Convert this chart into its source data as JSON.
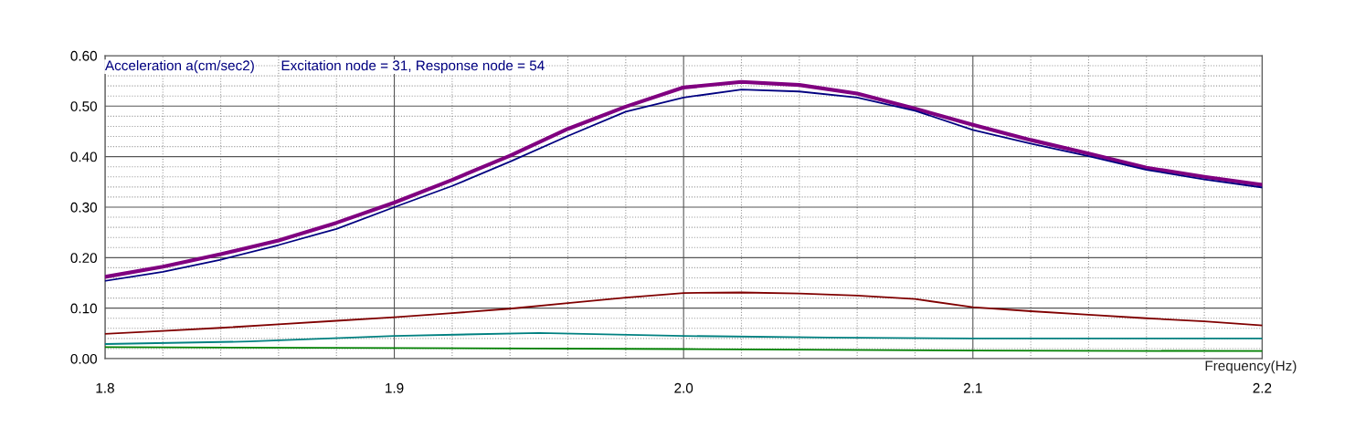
{
  "chart_data": {
    "type": "line",
    "title": "Excitation node = 31, Response node = 54",
    "ylabel": "Acceleration a(cm/sec2)",
    "xlabel": "Frequency(Hz)",
    "x": [
      1.8,
      1.82,
      1.84,
      1.86,
      1.88,
      1.9,
      1.92,
      1.94,
      1.96,
      1.98,
      2.0,
      2.02,
      2.04,
      2.06,
      2.08,
      2.1,
      2.12,
      2.14,
      2.16,
      2.18,
      2.2
    ],
    "series": [
      {
        "color": "#800080",
        "values": [
          0.162,
          0.182,
          0.207,
          0.234,
          0.269,
          0.309,
          0.354,
          0.402,
          0.455,
          0.499,
          0.537,
          0.548,
          0.542,
          0.525,
          0.495,
          0.463,
          0.433,
          0.406,
          0.378,
          0.36,
          0.344
        ]
      },
      {
        "color": "#000080",
        "values": [
          0.154,
          0.172,
          0.196,
          0.225,
          0.257,
          0.3,
          0.342,
          0.39,
          0.441,
          0.489,
          0.517,
          0.533,
          0.529,
          0.517,
          0.491,
          0.453,
          0.426,
          0.401,
          0.374,
          0.355,
          0.339
        ]
      },
      {
        "color": "#800000",
        "values": [
          0.049,
          0.055,
          0.061,
          0.068,
          0.075,
          0.082,
          0.09,
          0.099,
          0.11,
          0.121,
          0.13,
          0.131,
          0.129,
          0.125,
          0.118,
          0.102,
          0.094,
          0.087,
          0.08,
          0.074,
          0.066
        ]
      },
      {
        "color": "#008080",
        "x": [
          1.8,
          1.85,
          1.9,
          1.95,
          2.0,
          2.05,
          2.1,
          2.15,
          2.2
        ],
        "values": [
          0.029,
          0.034,
          0.045,
          0.051,
          0.045,
          0.042,
          0.04,
          0.04,
          0.04
        ]
      },
      {
        "color": "#008000",
        "x": [
          1.8,
          1.9,
          2.0,
          2.1,
          2.2
        ],
        "values": [
          0.023,
          0.021,
          0.019,
          0.016,
          0.015
        ]
      }
    ],
    "xlim": [
      1.8,
      2.2
    ],
    "ylim": [
      0,
      0.6
    ],
    "xticks": [
      {
        "value": 1.8,
        "label": "1.8"
      },
      {
        "value": 1.82,
        "label": null
      },
      {
        "value": 1.84,
        "label": null
      },
      {
        "value": 1.86,
        "label": null
      },
      {
        "value": 1.88,
        "label": null
      },
      {
        "value": 1.9,
        "label": "1.9"
      },
      {
        "value": 1.92,
        "label": null
      },
      {
        "value": 1.94,
        "label": null
      },
      {
        "value": 1.96,
        "label": null
      },
      {
        "value": 1.98,
        "label": null
      },
      {
        "value": 2.0,
        "label": "2.0"
      },
      {
        "value": 2.02,
        "label": null
      },
      {
        "value": 2.04,
        "label": null
      },
      {
        "value": 2.06,
        "label": null
      },
      {
        "value": 2.08,
        "label": null
      },
      {
        "value": 2.1,
        "label": "2.1"
      },
      {
        "value": 2.12,
        "label": null
      },
      {
        "value": 2.14,
        "label": null
      },
      {
        "value": 2.16,
        "label": null
      },
      {
        "value": 2.18,
        "label": null
      },
      {
        "value": 2.2,
        "label": "2.2"
      }
    ],
    "yticks": [
      {
        "value": 0,
        "label": "0.00"
      },
      {
        "value": 0.02,
        "label": null
      },
      {
        "value": 0.04,
        "label": null
      },
      {
        "value": 0.06,
        "label": null
      },
      {
        "value": 0.08,
        "label": null
      },
      {
        "value": 0.1,
        "label": "0.10"
      },
      {
        "value": 0.12,
        "label": null
      },
      {
        "value": 0.14,
        "label": null
      },
      {
        "value": 0.16,
        "label": null
      },
      {
        "value": 0.18,
        "label": null
      },
      {
        "value": 0.2,
        "label": "0.20"
      },
      {
        "value": 0.22,
        "label": null
      },
      {
        "value": 0.24,
        "label": null
      },
      {
        "value": 0.26,
        "label": null
      },
      {
        "value": 0.28,
        "label": null
      },
      {
        "value": 0.3,
        "label": "0.30"
      },
      {
        "value": 0.32,
        "label": null
      },
      {
        "value": 0.34,
        "label": null
      },
      {
        "value": 0.36,
        "label": null
      },
      {
        "value": 0.38,
        "label": null
      },
      {
        "value": 0.4,
        "label": "0.40"
      },
      {
        "value": 0.42,
        "label": null
      },
      {
        "value": 0.44,
        "label": null
      },
      {
        "value": 0.46,
        "label": null
      },
      {
        "value": 0.48,
        "label": null
      },
      {
        "value": 0.5,
        "label": "0.50"
      },
      {
        "value": 0.52,
        "label": null
      },
      {
        "value": 0.54,
        "label": null
      },
      {
        "value": 0.56,
        "label": null
      },
      {
        "value": 0.58,
        "label": null
      },
      {
        "value": 0.6,
        "label": "0.60"
      }
    ],
    "grid": true,
    "marker": "none",
    "line_style": "solid"
  }
}
